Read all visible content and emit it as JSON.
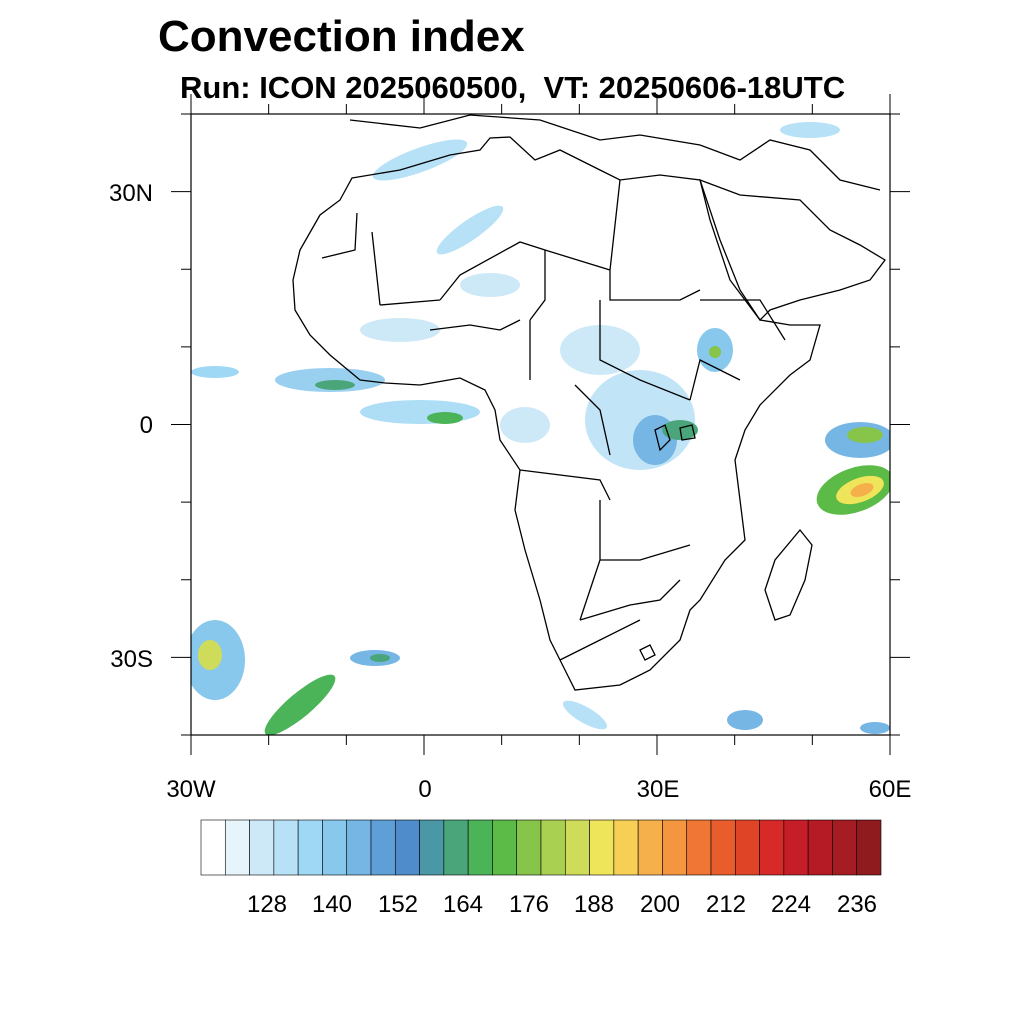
{
  "title": "Convection index",
  "subtitle": "Run: ICON 2025060500,  VT: 20250606-18UTC",
  "map": {
    "lon_range": [
      -30,
      60
    ],
    "lat_range": [
      -40,
      40
    ],
    "x_tick_labels": [
      "30W",
      "0",
      "30E",
      "60E"
    ],
    "y_tick_labels": [
      "30N",
      "0",
      "30S"
    ],
    "land_outline_color": "#000000",
    "background": "#ffffff"
  },
  "colorbar": {
    "colors": [
      "#ffffff",
      "#e6f4fc",
      "#cde9f8",
      "#b6e1f6",
      "#9fd8f5",
      "#88c8ec",
      "#76b6e4",
      "#5f9fd8",
      "#4f8ccb",
      "#4a98a5",
      "#4aa67a",
      "#4bb358",
      "#5cba47",
      "#86c54a",
      "#aad052",
      "#cfdc5a",
      "#efe55b",
      "#f8cf55",
      "#f5b04b",
      "#f49540",
      "#ef7634",
      "#e95c2b",
      "#df4427",
      "#d72a28",
      "#c61e28",
      "#b51b25",
      "#a51c22",
      "#8f1b1f"
    ],
    "labels": [
      "128",
      "140",
      "152",
      "164",
      "176",
      "188",
      "200",
      "212",
      "224",
      "236"
    ]
  }
}
